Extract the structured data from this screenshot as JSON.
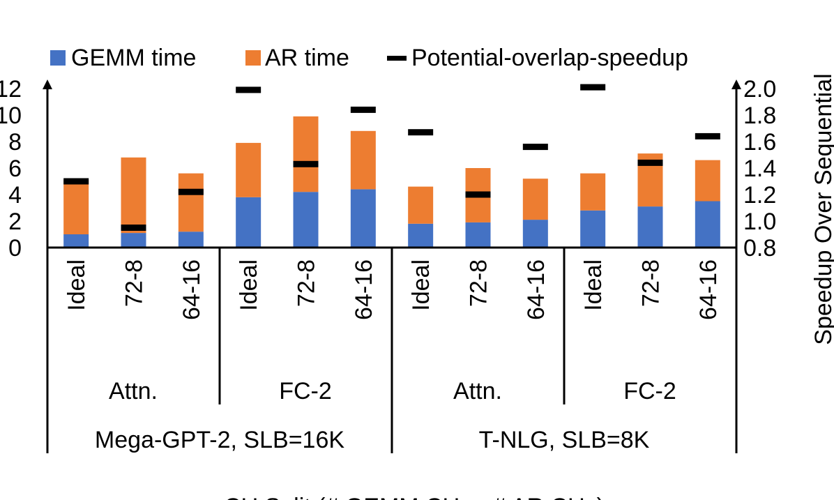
{
  "chart_data": {
    "type": "bar",
    "stacked": true,
    "title": "",
    "xlabel": "CU Split (# GEMM CUs - # AR CUs)",
    "ylabel_right": "Speedup Over Sequential",
    "ylim_left": [
      0,
      12
    ],
    "yticks_left": [
      "0",
      "2",
      "4",
      "6",
      "8",
      "10",
      "12"
    ],
    "ylim_right": [
      0.8,
      2.0
    ],
    "yticks_right": [
      "0.8",
      "1.0",
      "1.2",
      "1.4",
      "1.6",
      "1.8",
      "2.0"
    ],
    "legend": {
      "placement": "top",
      "entries": [
        "GEMM time",
        "AR time",
        "Potential-overlap-speedup"
      ]
    },
    "colors": {
      "gemm": "#4472C4",
      "ar": "#ED7D31",
      "speedup": "#000000"
    },
    "categories": [
      "Ideal",
      "72-8",
      "64-16",
      "Ideal",
      "72-8",
      "64-16",
      "Ideal",
      "72-8",
      "64-16",
      "Ideal",
      "72-8",
      "64-16"
    ],
    "group_labels": [
      "Attn.",
      "FC-2",
      "Attn.",
      "FC-2"
    ],
    "model_labels": [
      "Mega-GPT-2, SLB=16K",
      "T-NLG, SLB=8K"
    ],
    "series": [
      {
        "name": "GEMM time",
        "axis": "left",
        "values": [
          1.0,
          1.1,
          1.2,
          3.8,
          4.2,
          4.4,
          1.8,
          1.9,
          2.1,
          2.8,
          3.1,
          3.5
        ]
      },
      {
        "name": "AR time",
        "axis": "left",
        "values": [
          4.1,
          5.7,
          4.4,
          4.1,
          5.7,
          4.4,
          2.8,
          4.1,
          3.1,
          2.8,
          4.0,
          3.1
        ]
      },
      {
        "name": "Potential-overlap-speedup",
        "axis": "right",
        "values": [
          1.3,
          0.95,
          1.22,
          1.99,
          1.43,
          1.84,
          1.67,
          1.2,
          1.56,
          2.01,
          1.44,
          1.64
        ]
      }
    ]
  }
}
